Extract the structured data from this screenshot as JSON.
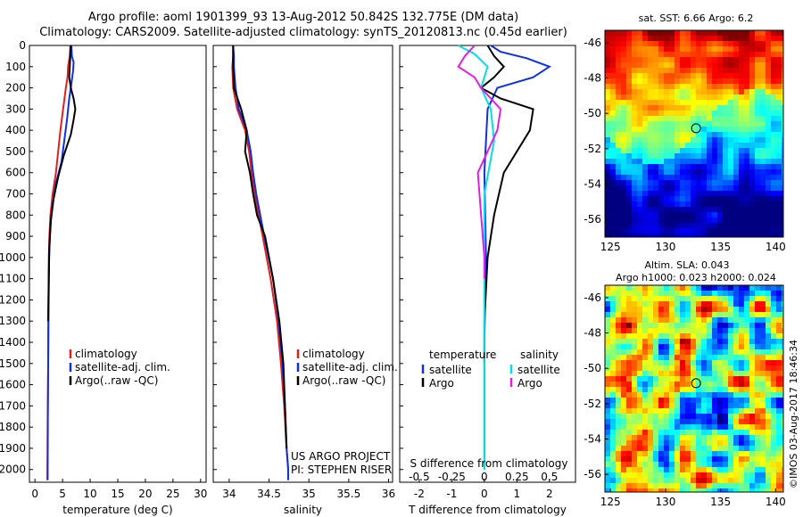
{
  "header": {
    "line1": "Argo profile: aoml 1901399_93 13-Aug-2012 50.842S 132.775E (DM data)",
    "line2": "Climatology: CARS2009. Satellite-adjusted climatology: synTS_20120813.nc (0.45d earlier)"
  },
  "colors": {
    "climatology": "#e02020",
    "satellite": "#1030e0",
    "argo": "#000000",
    "salinity_satellite": "#00e0e0",
    "salinity_argo": "#e020e0"
  },
  "chart_data": [
    {
      "type": "line",
      "id": "temperature",
      "xlabel": "temperature (deg C)",
      "xlim": [
        -1,
        31
      ],
      "xticks": [
        0,
        5,
        10,
        15,
        20,
        25,
        30
      ],
      "ylim": [
        2060,
        0
      ],
      "yticks": [
        0,
        100,
        200,
        300,
        400,
        500,
        600,
        700,
        800,
        900,
        1000,
        1100,
        1200,
        1300,
        1400,
        1500,
        1600,
        1700,
        1800,
        1900,
        2000
      ],
      "legend": [
        "climatology",
        "satellite-adj. clim.",
        "Argo(..raw -QC)"
      ],
      "series": [
        {
          "name": "climatology",
          "color_key": "climatology",
          "x": [
            6.4,
            6.3,
            6.0,
            5.9,
            5.6,
            4.6,
            3.8,
            3.2,
            2.8,
            2.6,
            2.5,
            2.45,
            2.4,
            2.3,
            2.25
          ],
          "y": [
            0,
            50,
            100,
            150,
            200,
            400,
            600,
            700,
            800,
            900,
            1000,
            1200,
            1500,
            1800,
            2050
          ]
        },
        {
          "name": "satellite-adj. clim.",
          "color_key": "satellite",
          "x": [
            6.6,
            6.7,
            7.0,
            6.9,
            6.6,
            6.2,
            5.8,
            4.8,
            3.8,
            3.2,
            2.8,
            2.55,
            2.45,
            2.35,
            2.3
          ],
          "y": [
            0,
            50,
            80,
            120,
            180,
            250,
            350,
            550,
            650,
            750,
            850,
            1000,
            1300,
            1700,
            2050
          ]
        },
        {
          "name": "Argo(..raw -QC)",
          "color_key": "argo",
          "x": [
            6.5,
            6.4,
            6.3,
            6.2,
            6.5,
            7.0,
            7.3,
            7.0,
            6.5,
            5.2,
            4.2,
            3.4,
            2.9,
            2.6,
            2.5,
            2.4
          ],
          "y": [
            0,
            50,
            100,
            150,
            200,
            250,
            300,
            350,
            420,
            520,
            620,
            720,
            820,
            950,
            1100,
            1300
          ]
        }
      ]
    },
    {
      "type": "line",
      "id": "salinity",
      "xlabel": "salinity",
      "xlim": [
        33.8,
        36.05
      ],
      "xticks": [
        34,
        34.5,
        35,
        35.5,
        36
      ],
      "ylim": [
        2060,
        0
      ],
      "legend": [
        "climatology",
        "satellite-adj. clim.",
        "Argo(..raw -QC)"
      ],
      "annotation": [
        "US ARGO PROJECT",
        "PI: STEPHEN RISER"
      ],
      "series": [
        {
          "name": "climatology",
          "color_key": "climatology",
          "x": [
            34.05,
            34.05,
            34.04,
            34.05,
            34.1,
            34.2,
            34.25,
            34.28,
            34.32,
            34.42,
            34.52,
            34.6,
            34.65,
            34.69,
            34.72,
            34.74,
            34.74
          ],
          "y": [
            0,
            50,
            100,
            200,
            300,
            400,
            500,
            600,
            700,
            900,
            1100,
            1300,
            1500,
            1700,
            1900,
            2000,
            2050
          ]
        },
        {
          "name": "satellite-adj. clim.",
          "color_key": "satellite",
          "x": [
            34.05,
            34.06,
            34.06,
            34.08,
            34.12,
            34.22,
            34.27,
            34.3,
            34.34,
            34.44,
            34.55,
            34.62,
            34.67,
            34.7,
            34.72,
            34.74,
            34.74
          ],
          "y": [
            0,
            50,
            100,
            200,
            300,
            400,
            500,
            600,
            700,
            900,
            1100,
            1300,
            1500,
            1700,
            1900,
            2000,
            2050
          ]
        },
        {
          "name": "Argo(..raw -QC)",
          "color_key": "argo",
          "x": [
            34.05,
            34.05,
            34.06,
            34.15,
            34.22,
            34.2,
            34.26,
            34.3,
            34.35,
            34.45,
            34.55,
            34.63,
            34.68,
            34.7,
            34.72
          ],
          "y": [
            0,
            100,
            200,
            300,
            400,
            500,
            600,
            700,
            800,
            900,
            1100,
            1300,
            1500,
            1700,
            1900
          ]
        }
      ]
    },
    {
      "type": "line",
      "id": "differences",
      "xlabel": "T difference from climatology",
      "xlabel_top": "S difference from climatology",
      "xlim": [
        -2.6,
        2.8
      ],
      "xticks": [
        -2,
        -1,
        0,
        1,
        2
      ],
      "s_ticks": [
        -0.5,
        -0.25,
        0,
        0.25,
        0.5
      ],
      "s_tick_labels": [
        "-0.5",
        "-0.25",
        "0",
        "0.25",
        "0.5"
      ],
      "ylim": [
        2060,
        0
      ],
      "legend_temperature": {
        "title": "temperature",
        "items": [
          "satellite",
          "Argo"
        ]
      },
      "legend_salinity": {
        "title": "salinity",
        "items": [
          "satellite",
          "Argo"
        ]
      },
      "series": [
        {
          "name": "temperature satellite",
          "color_key": "satellite",
          "x": [
            0.2,
            0.5,
            1.3,
            2.0,
            1.5,
            0.4,
            0.1,
            0.0,
            0.05,
            0.0,
            0.0,
            0.0
          ],
          "y": [
            0,
            30,
            60,
            100,
            150,
            200,
            300,
            600,
            1000,
            1400,
            1800,
            2000
          ]
        },
        {
          "name": "temperature Argo",
          "color_key": "argo",
          "x": [
            0.1,
            0.3,
            0.6,
            0.3,
            -0.1,
            0.5,
            1.5,
            1.4,
            0.6,
            0.3,
            0.1,
            0.0,
            0.0
          ],
          "y": [
            0,
            50,
            100,
            150,
            200,
            250,
            300,
            400,
            600,
            800,
            1000,
            1300,
            1500
          ]
        },
        {
          "name": "salinity satellite",
          "color_key": "salinity_satellite",
          "x": [
            -0.8,
            -0.3,
            0.1,
            -0.1,
            0.2,
            0.3,
            0.0,
            0.0,
            0.0,
            0.0
          ],
          "y": [
            0,
            40,
            100,
            200,
            300,
            450,
            700,
            1100,
            1600,
            2000
          ]
        },
        {
          "name": "salinity Argo",
          "color_key": "salinity_argo",
          "x": [
            -0.3,
            -0.6,
            -0.8,
            -0.3,
            -0.1,
            0.5,
            0.4,
            -0.2,
            -0.1,
            0.0,
            0.0
          ],
          "y": [
            0,
            50,
            100,
            150,
            200,
            300,
            400,
            600,
            800,
            1000,
            1100
          ]
        }
      ]
    },
    {
      "type": "heatmap",
      "id": "sst_map",
      "title": "sat. SST: 6.66 Argo: 6.2",
      "xticks": [
        125,
        130,
        135,
        140
      ],
      "yticks": [
        -46,
        -48,
        -50,
        -52,
        -54,
        -56
      ],
      "xlim": [
        124.5,
        140.7
      ],
      "ylim": [
        -57,
        -45.3
      ],
      "marker": {
        "lon": 132.775,
        "lat": -50.842
      }
    },
    {
      "type": "heatmap",
      "id": "sla_map",
      "title_lines": [
        "Altim. SLA: 0.043",
        "Argo h1000: 0.023 h2000: 0.024"
      ],
      "xticks": [
        125,
        130,
        135,
        140
      ],
      "yticks": [
        -46,
        -48,
        -50,
        -52,
        -54,
        -56
      ],
      "xlim": [
        124.5,
        140.7
      ],
      "ylim": [
        -57,
        -45.3
      ],
      "marker": {
        "lon": 132.775,
        "lat": -50.842
      }
    }
  ],
  "credit": "©IMOS 03-Aug-2017 18:46:34"
}
